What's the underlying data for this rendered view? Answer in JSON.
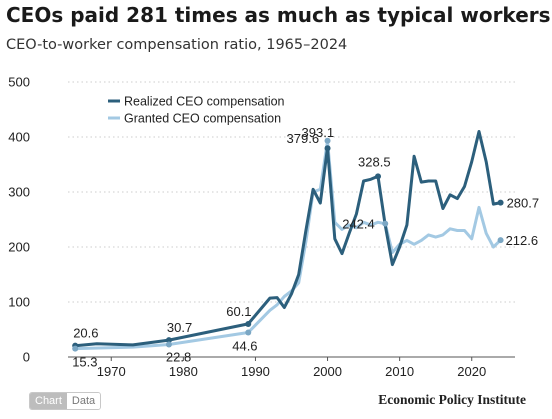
{
  "header": {
    "title": "CEOs paid 281 times as much as typical workers",
    "subtitle": "CEO-to-worker compensation ratio, 1965–2024"
  },
  "footer": {
    "tab_chart": "Chart",
    "tab_data": "Data",
    "source": "Economic Policy Institute"
  },
  "colors": {
    "realized": "#2c5f7c",
    "granted": "#a3c9e3",
    "grid": "#cccccc",
    "text": "#222222"
  },
  "chart_data": {
    "type": "line",
    "title": "CEOs paid 281 times as much as typical workers",
    "subtitle": "CEO-to-worker compensation ratio, 1965–2024",
    "xlim": [
      1965,
      2024
    ],
    "ylim": [
      0,
      500
    ],
    "x_ticks": [
      1970,
      1980,
      1990,
      2000,
      2010,
      2020
    ],
    "y_ticks": [
      0,
      100,
      200,
      300,
      400,
      500
    ],
    "grid": "horizontal dotted",
    "legend_placement": "top-left",
    "series": [
      {
        "name": "Realized CEO compensation",
        "color": "#2c5f7c",
        "points": [
          [
            1965,
            20.6
          ],
          [
            1968,
            24
          ],
          [
            1973,
            22
          ],
          [
            1978,
            30.7
          ],
          [
            1989,
            60.1
          ],
          [
            1992,
            107
          ],
          [
            1993,
            108
          ],
          [
            1994,
            90
          ],
          [
            1995,
            115
          ],
          [
            1996,
            150
          ],
          [
            1997,
            230
          ],
          [
            1998,
            305
          ],
          [
            1999,
            280
          ],
          [
            2000,
            380
          ],
          [
            2001,
            215
          ],
          [
            2002,
            188
          ],
          [
            2003,
            225
          ],
          [
            2004,
            260
          ],
          [
            2005,
            320
          ],
          [
            2006,
            323
          ],
          [
            2007,
            328.5
          ],
          [
            2008,
            240
          ],
          [
            2009,
            168
          ],
          [
            2010,
            200
          ],
          [
            2011,
            240
          ],
          [
            2012,
            365
          ],
          [
            2013,
            318
          ],
          [
            2014,
            320
          ],
          [
            2015,
            320
          ],
          [
            2016,
            270
          ],
          [
            2017,
            295
          ],
          [
            2018,
            288
          ],
          [
            2019,
            310
          ],
          [
            2020,
            355
          ],
          [
            2021,
            410
          ],
          [
            2022,
            355
          ],
          [
            2023,
            278
          ],
          [
            2024,
            280.7
          ]
        ],
        "labels": [
          {
            "x": 1965,
            "y": 20.6,
            "text": "20.6"
          },
          {
            "x": 1978,
            "y": 30.7,
            "text": "30.7"
          },
          {
            "x": 1989,
            "y": 60.1,
            "text": "60.1"
          },
          {
            "x": 2000,
            "y": 379.6,
            "text": "379.6"
          },
          {
            "x": 2007,
            "y": 328.5,
            "text": "328.5"
          },
          {
            "x": 2024,
            "y": 280.7,
            "text": "280.7"
          }
        ]
      },
      {
        "name": "Granted CEO compensation",
        "color": "#a3c9e3",
        "points": [
          [
            1965,
            15.3
          ],
          [
            1973,
            18
          ],
          [
            1978,
            22.8
          ],
          [
            1989,
            44.6
          ],
          [
            1992,
            85
          ],
          [
            1993,
            95
          ],
          [
            1994,
            110
          ],
          [
            1995,
            120
          ],
          [
            1996,
            135
          ],
          [
            1997,
            210
          ],
          [
            1998,
            300
          ],
          [
            1999,
            305
          ],
          [
            2000,
            393.1
          ],
          [
            2001,
            245
          ],
          [
            2002,
            232
          ],
          [
            2003,
            240
          ],
          [
            2004,
            235
          ],
          [
            2005,
            245
          ],
          [
            2006,
            240
          ],
          [
            2007,
            245
          ],
          [
            2008,
            242.4
          ],
          [
            2009,
            190
          ],
          [
            2010,
            205
          ],
          [
            2011,
            212
          ],
          [
            2012,
            205
          ],
          [
            2013,
            212
          ],
          [
            2014,
            222
          ],
          [
            2015,
            218
          ],
          [
            2016,
            222
          ],
          [
            2017,
            233
          ],
          [
            2018,
            230
          ],
          [
            2019,
            230
          ],
          [
            2020,
            215
          ],
          [
            2021,
            272
          ],
          [
            2022,
            225
          ],
          [
            2023,
            200
          ],
          [
            2024,
            212.6
          ]
        ],
        "labels": [
          {
            "x": 1965,
            "y": 15.3,
            "text": "15.3"
          },
          {
            "x": 1978,
            "y": 22.8,
            "text": "22.8"
          },
          {
            "x": 1989,
            "y": 44.6,
            "text": "44.6"
          },
          {
            "x": 2000,
            "y": 393.1,
            "text": "393.1"
          },
          {
            "x": 2008,
            "y": 242.4,
            "text": "242.4"
          },
          {
            "x": 2024,
            "y": 212.6,
            "text": "212.6"
          }
        ]
      }
    ]
  }
}
